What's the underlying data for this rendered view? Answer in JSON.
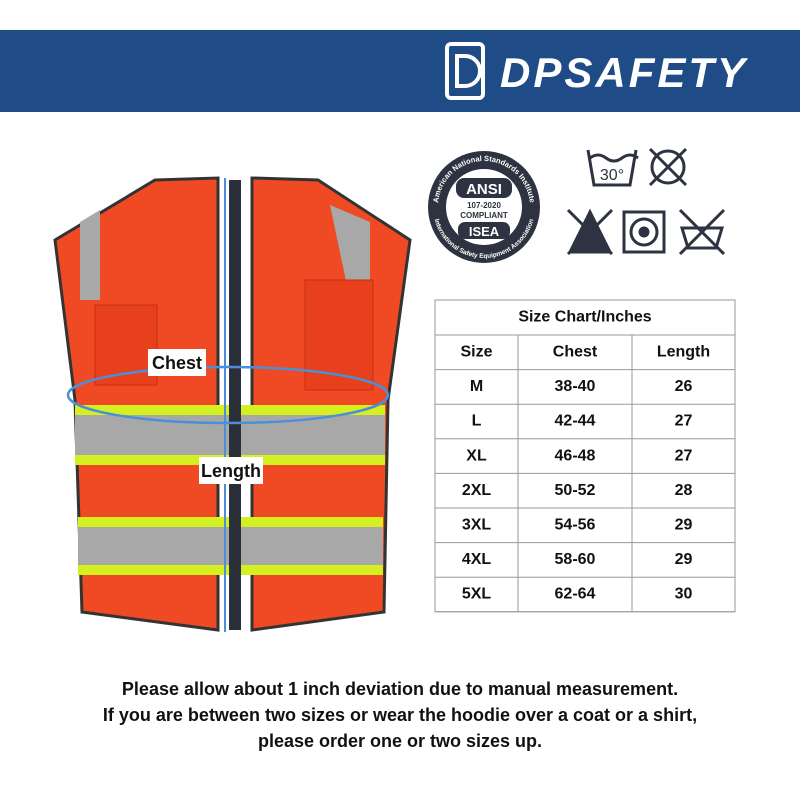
{
  "brand": "DPSAFETY",
  "badge": {
    "ring_top": "American National Standards Institute",
    "ring_bottom": "International Safety Equipment Association",
    "ansi": "ANSI",
    "standard": "107-2020",
    "compliant": "COMPLIANT",
    "isea": "ISEA"
  },
  "care": {
    "wash_temp": "30°"
  },
  "vest": {
    "chest": "Chest",
    "length": "Length"
  },
  "table": {
    "title": "Size Chart/Inches",
    "header": [
      "Size",
      "Chest",
      "Length"
    ],
    "rows": [
      [
        "M",
        "38-40",
        26
      ],
      [
        "L",
        "42-44",
        27
      ],
      [
        "XL",
        "46-48",
        27
      ],
      [
        "2XL",
        "50-52",
        28
      ],
      [
        "3XL",
        "54-56",
        29
      ],
      [
        "4XL",
        "58-60",
        29
      ],
      [
        "5XL",
        "62-64",
        30
      ]
    ]
  },
  "notes": [
    "Please allow about 1 inch deviation due to manual measurement.",
    "If you are between two sizes or wear the hoodie over a coat or a shirt,",
    "please order one or two sizes up."
  ]
}
